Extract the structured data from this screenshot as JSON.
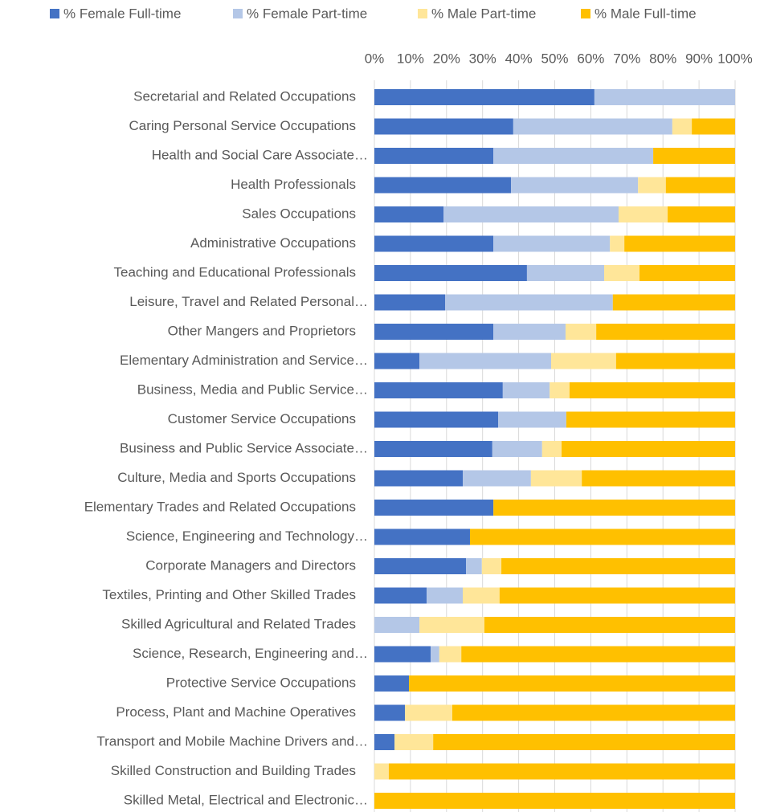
{
  "chart_data": {
    "type": "stacked_barh",
    "categories": [
      "Secretarial and Related Occupations",
      "Caring Personal Service Occupations",
      "Health and Social Care Associate…",
      "Health Professionals",
      "Sales Occupations",
      "Administrative Occupations",
      "Teaching and Educational Professionals",
      "Leisure, Travel and Related Personal…",
      "Other Mangers and Proprietors",
      "Elementary Administration and Service…",
      "Business, Media and Public Service…",
      "Customer Service Occupations",
      "Business and Public Service Associate…",
      "Culture, Media and Sports Occupations",
      "Elementary Trades and Related Occupations",
      "Science, Engineering and Technology…",
      "Corporate Managers and Directors",
      "Textiles, Printing and Other Skilled Trades",
      "Skilled Agricultural and Related Trades",
      "Science, Research, Engineering and…",
      "Protective Service Occupations",
      "Process, Plant and Machine Operatives",
      "Transport and Mobile Machine Drivers and…",
      "Skilled Construction and Building Trades",
      "Skilled Metal, Electrical and Electronic…"
    ],
    "series": [
      {
        "name": "% Female Full-time",
        "color": "#4472c4",
        "values": [
          61,
          38.5,
          33,
          37.9,
          19.2,
          33,
          42.3,
          19.6,
          33,
          12.5,
          35.6,
          34.3,
          32.7,
          24.5,
          33,
          26.5,
          25.4,
          14.5,
          0,
          15.6,
          9.6,
          8.5,
          5.6,
          0,
          0
        ]
      },
      {
        "name": "% Female Part-time",
        "color": "#b4c7e7",
        "values": [
          39,
          44.1,
          44.3,
          35.2,
          48.5,
          32.3,
          21.4,
          46.5,
          20,
          36.5,
          13,
          18.9,
          13.8,
          18.9,
          0,
          0,
          4.4,
          10,
          12.5,
          2.4,
          0,
          0,
          0,
          0,
          0
        ]
      },
      {
        "name": "% Male Part-time",
        "color": "#ffe699",
        "values": [
          0,
          5.4,
          0,
          7.7,
          13.6,
          4,
          9.8,
          0,
          8.5,
          18,
          5.5,
          0,
          5.4,
          14.1,
          0,
          0,
          5.4,
          10.2,
          18,
          6.1,
          0,
          13.1,
          10.7,
          4,
          0
        ]
      },
      {
        "name": "% Male Full-time",
        "color": "#ffc000",
        "values": [
          0,
          12,
          22.7,
          19.2,
          18.7,
          30.7,
          26.5,
          33.9,
          38.5,
          33,
          45.9,
          46.8,
          48.1,
          42.5,
          67,
          73.5,
          64.8,
          65.3,
          69.5,
          75.9,
          90.4,
          78.4,
          83.7,
          96,
          100
        ]
      }
    ],
    "xlim": [
      0,
      100
    ],
    "xticks": [
      {
        "value": 0,
        "label": "0%"
      },
      {
        "value": 10,
        "label": "10%"
      },
      {
        "value": 20,
        "label": "20%"
      },
      {
        "value": 30,
        "label": "30%"
      },
      {
        "value": 40,
        "label": "40%"
      },
      {
        "value": 50,
        "label": "50%"
      },
      {
        "value": 60,
        "label": "60%"
      },
      {
        "value": 70,
        "label": "70%"
      },
      {
        "value": 80,
        "label": "80%"
      },
      {
        "value": 90,
        "label": "90%"
      },
      {
        "value": 100,
        "label": "100%"
      }
    ],
    "grid": true,
    "legend": "top"
  }
}
